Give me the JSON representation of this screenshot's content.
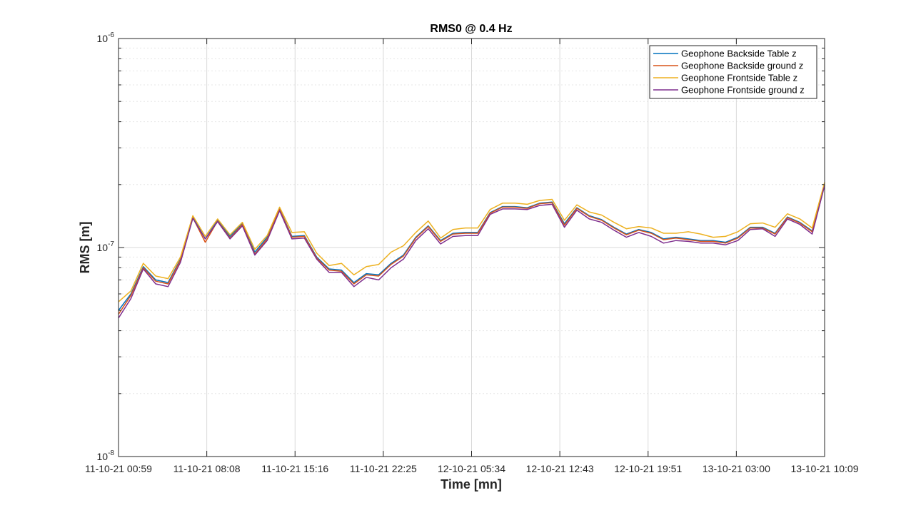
{
  "chart_data": {
    "type": "line",
    "title": "RMS0 @ 0.4 Hz",
    "xlabel": "Time [mn]",
    "ylabel": "RMS [m]",
    "yscale": "log",
    "ylim": [
      1e-08,
      1e-06
    ],
    "yticks": [
      {
        "base": "10",
        "exp": "-8",
        "value": 1e-08
      },
      {
        "base": "10",
        "exp": "-7",
        "value": 1e-07
      },
      {
        "base": "10",
        "exp": "-6",
        "value": 1e-06
      }
    ],
    "xticks": [
      "11-10-21 00:59",
      "11-10-21 08:08",
      "11-10-21 15:16",
      "11-10-21 22:25",
      "12-10-21 05:34",
      "12-10-21 12:43",
      "12-10-21 19:51",
      "13-10-21 03:00",
      "13-10-21 10:09"
    ],
    "grid": true,
    "legend_position": "top-right",
    "series": [
      {
        "name": "Geophone Backside Table z",
        "color": "#0072BD",
        "values": [
          5e-08,
          6e-08,
          8.1e-08,
          7e-08,
          6.8e-08,
          8.8e-08,
          1.4e-07,
          1.1e-07,
          1.35e-07,
          1.13e-07,
          1.3e-07,
          9.5e-08,
          1.12e-07,
          1.53e-07,
          1.13e-07,
          1.14e-07,
          9e-08,
          7.9e-08,
          7.8e-08,
          6.8e-08,
          7.5e-08,
          7.4e-08,
          8.4e-08,
          9.2e-08,
          1.12e-07,
          1.27e-07,
          1.08e-07,
          1.17e-07,
          1.18e-07,
          1.18e-07,
          1.47e-07,
          1.57e-07,
          1.57e-07,
          1.55e-07,
          1.63e-07,
          1.65e-07,
          1.3e-07,
          1.55e-07,
          1.42e-07,
          1.36e-07,
          1.25e-07,
          1.16e-07,
          1.22e-07,
          1.18e-07,
          1.1e-07,
          1.12e-07,
          1.1e-07,
          1.08e-07,
          1.08e-07,
          1.06e-07,
          1.12e-07,
          1.25e-07,
          1.25e-07,
          1.17e-07,
          1.4e-07,
          1.32e-07,
          1.2e-07,
          2e-07
        ]
      },
      {
        "name": "Geophone Backside ground z",
        "color": "#D95319",
        "values": [
          4.8e-08,
          5.9e-08,
          8e-08,
          6.9e-08,
          6.7e-08,
          8.7e-08,
          1.39e-07,
          1.06e-07,
          1.34e-07,
          1.11e-07,
          1.29e-07,
          9.3e-08,
          1.1e-07,
          1.52e-07,
          1.12e-07,
          1.13e-07,
          8.9e-08,
          7.8e-08,
          7.7e-08,
          6.7e-08,
          7.4e-08,
          7.3e-08,
          8.3e-08,
          9.1e-08,
          1.11e-07,
          1.26e-07,
          1.07e-07,
          1.16e-07,
          1.17e-07,
          1.17e-07,
          1.46e-07,
          1.56e-07,
          1.56e-07,
          1.54e-07,
          1.62e-07,
          1.64e-07,
          1.28e-07,
          1.54e-07,
          1.41e-07,
          1.35e-07,
          1.24e-07,
          1.15e-07,
          1.21e-07,
          1.17e-07,
          1.09e-07,
          1.11e-07,
          1.09e-07,
          1.07e-07,
          1.07e-07,
          1.05e-07,
          1.11e-07,
          1.24e-07,
          1.24e-07,
          1.16e-07,
          1.39e-07,
          1.31e-07,
          1.19e-07,
          2e-07
        ]
      },
      {
        "name": "Geophone Frontside Table z",
        "color": "#EDB120",
        "values": [
          5.5e-08,
          6.2e-08,
          8.4e-08,
          7.3e-08,
          7.1e-08,
          9e-08,
          1.42e-07,
          1.13e-07,
          1.37e-07,
          1.15e-07,
          1.32e-07,
          9.8e-08,
          1.14e-07,
          1.56e-07,
          1.18e-07,
          1.19e-07,
          9.4e-08,
          8.2e-08,
          8.4e-08,
          7.4e-08,
          8.1e-08,
          8.3e-08,
          9.5e-08,
          1.02e-07,
          1.18e-07,
          1.34e-07,
          1.11e-07,
          1.22e-07,
          1.24e-07,
          1.24e-07,
          1.52e-07,
          1.63e-07,
          1.63e-07,
          1.61e-07,
          1.68e-07,
          1.7e-07,
          1.35e-07,
          1.6e-07,
          1.48e-07,
          1.43e-07,
          1.32e-07,
          1.23e-07,
          1.26e-07,
          1.24e-07,
          1.17e-07,
          1.17e-07,
          1.19e-07,
          1.16e-07,
          1.12e-07,
          1.13e-07,
          1.19e-07,
          1.3e-07,
          1.31e-07,
          1.25e-07,
          1.45e-07,
          1.37e-07,
          1.24e-07,
          2.05e-07
        ]
      },
      {
        "name": "Geophone Frontside ground z",
        "color": "#7E2F8E",
        "values": [
          4.6e-08,
          5.7e-08,
          7.9e-08,
          6.7e-08,
          6.5e-08,
          8.5e-08,
          1.38e-07,
          1.1e-07,
          1.33e-07,
          1.1e-07,
          1.27e-07,
          9.2e-08,
          1.08e-07,
          1.5e-07,
          1.1e-07,
          1.11e-07,
          8.8e-08,
          7.6e-08,
          7.6e-08,
          6.5e-08,
          7.2e-08,
          7e-08,
          8e-08,
          8.8e-08,
          1.08e-07,
          1.23e-07,
          1.04e-07,
          1.13e-07,
          1.14e-07,
          1.14e-07,
          1.44e-07,
          1.53e-07,
          1.53e-07,
          1.52e-07,
          1.59e-07,
          1.61e-07,
          1.25e-07,
          1.51e-07,
          1.37e-07,
          1.32e-07,
          1.21e-07,
          1.12e-07,
          1.18e-07,
          1.13e-07,
          1.05e-07,
          1.08e-07,
          1.07e-07,
          1.05e-07,
          1.05e-07,
          1.03e-07,
          1.08e-07,
          1.22e-07,
          1.23e-07,
          1.13e-07,
          1.37e-07,
          1.29e-07,
          1.16e-07,
          1.98e-07
        ]
      }
    ]
  }
}
